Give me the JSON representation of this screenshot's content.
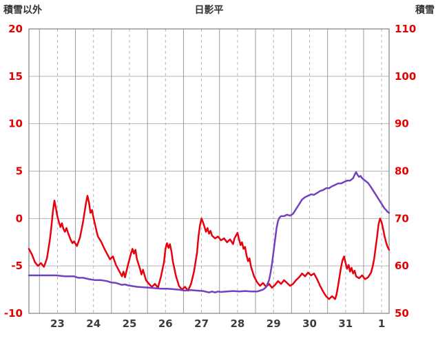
{
  "chart_data": {
    "type": "line",
    "title": "日影平",
    "style": {
      "tick_color": "#e50000",
      "date_label_color": "#3c3c3c",
      "grid_color": "#b4b4b4",
      "day_grid_color": "#9a9a9a",
      "border_color": "#7f7f7f",
      "background": "#ffffff"
    },
    "x": {
      "window_hours": 240,
      "day_labels": [
        "23",
        "24",
        "25",
        "26",
        "27",
        "28",
        "29",
        "30",
        "31",
        "1"
      ],
      "label_hours": [
        19,
        43,
        67,
        91,
        115,
        139,
        163,
        187,
        211,
        235
      ],
      "midnight_hours": [
        7,
        31,
        55,
        79,
        103,
        127,
        151,
        175,
        199,
        223
      ]
    },
    "left_axis": {
      "label": "積雪以外",
      "min": -10,
      "max": 20,
      "ticks": [
        20,
        15,
        10,
        5,
        0,
        -5,
        -10
      ]
    },
    "right_axis": {
      "label": "積雪",
      "min": 50,
      "max": 110,
      "ticks": [
        110,
        100,
        90,
        80,
        70,
        60,
        50
      ]
    },
    "series": [
      {
        "name": "積雪以外",
        "id": "other-than-snow-line",
        "axis": "left",
        "color": "#e8000d",
        "points": [
          [
            0,
            -3.2
          ],
          [
            2,
            -3.8
          ],
          [
            4,
            -4.6
          ],
          [
            6,
            -5.0
          ],
          [
            8,
            -4.7
          ],
          [
            10,
            -5.1
          ],
          [
            12,
            -4.2
          ],
          [
            14,
            -2.2
          ],
          [
            15,
            -0.8
          ],
          [
            16,
            0.8
          ],
          [
            17,
            1.9
          ],
          [
            18,
            1.1
          ],
          [
            19,
            0.2
          ],
          [
            20,
            -0.4
          ],
          [
            21,
            -0.9
          ],
          [
            22,
            -0.5
          ],
          [
            23,
            -1.1
          ],
          [
            24,
            -1.4
          ],
          [
            25,
            -1.0
          ],
          [
            26,
            -1.5
          ],
          [
            27,
            -1.9
          ],
          [
            28,
            -2.3
          ],
          [
            29,
            -2.6
          ],
          [
            30,
            -2.4
          ],
          [
            32,
            -2.9
          ],
          [
            34,
            -2.0
          ],
          [
            36,
            -0.4
          ],
          [
            38,
            1.6
          ],
          [
            39,
            2.4
          ],
          [
            40,
            1.7
          ],
          [
            41,
            0.6
          ],
          [
            42,
            0.9
          ],
          [
            43,
            0.1
          ],
          [
            44,
            -0.6
          ],
          [
            45,
            -1.3
          ],
          [
            46,
            -1.9
          ],
          [
            48,
            -2.4
          ],
          [
            50,
            -3.1
          ],
          [
            52,
            -3.7
          ],
          [
            54,
            -4.3
          ],
          [
            56,
            -4.0
          ],
          [
            58,
            -4.9
          ],
          [
            60,
            -5.5
          ],
          [
            62,
            -6.1
          ],
          [
            63,
            -5.6
          ],
          [
            64,
            -6.2
          ],
          [
            66,
            -4.9
          ],
          [
            68,
            -3.7
          ],
          [
            69,
            -3.2
          ],
          [
            70,
            -3.7
          ],
          [
            71,
            -3.3
          ],
          [
            72,
            -4.3
          ],
          [
            74,
            -5.3
          ],
          [
            75,
            -5.9
          ],
          [
            76,
            -5.4
          ],
          [
            78,
            -6.5
          ],
          [
            80,
            -6.9
          ],
          [
            82,
            -7.2
          ],
          [
            84,
            -6.9
          ],
          [
            86,
            -7.3
          ],
          [
            88,
            -6.1
          ],
          [
            90,
            -4.6
          ],
          [
            91,
            -3.2
          ],
          [
            92,
            -2.6
          ],
          [
            93,
            -3.1
          ],
          [
            94,
            -2.7
          ],
          [
            95,
            -3.5
          ],
          [
            96,
            -4.6
          ],
          [
            98,
            -6.1
          ],
          [
            100,
            -7.1
          ],
          [
            102,
            -7.5
          ],
          [
            104,
            -7.2
          ],
          [
            106,
            -7.6
          ],
          [
            108,
            -6.9
          ],
          [
            110,
            -5.6
          ],
          [
            111,
            -4.6
          ],
          [
            112,
            -3.6
          ],
          [
            113,
            -1.9
          ],
          [
            114,
            -0.7
          ],
          [
            115,
            0.0
          ],
          [
            116,
            -0.4
          ],
          [
            117,
            -0.9
          ],
          [
            118,
            -1.4
          ],
          [
            119,
            -1.0
          ],
          [
            120,
            -1.6
          ],
          [
            121,
            -1.3
          ],
          [
            122,
            -1.8
          ],
          [
            124,
            -2.1
          ],
          [
            126,
            -1.9
          ],
          [
            128,
            -2.3
          ],
          [
            130,
            -2.1
          ],
          [
            132,
            -2.5
          ],
          [
            134,
            -2.2
          ],
          [
            136,
            -2.7
          ],
          [
            137,
            -2.1
          ],
          [
            139,
            -1.5
          ],
          [
            140,
            -2.2
          ],
          [
            141,
            -2.8
          ],
          [
            142,
            -2.5
          ],
          [
            143,
            -3.2
          ],
          [
            144,
            -3.0
          ],
          [
            145,
            -3.9
          ],
          [
            146,
            -4.5
          ],
          [
            147,
            -4.2
          ],
          [
            148,
            -5.1
          ],
          [
            150,
            -6.1
          ],
          [
            152,
            -6.7
          ],
          [
            154,
            -7.1
          ],
          [
            156,
            -6.8
          ],
          [
            158,
            -7.2
          ],
          [
            160,
            -6.9
          ],
          [
            162,
            -7.3
          ],
          [
            164,
            -7.0
          ],
          [
            166,
            -6.6
          ],
          [
            168,
            -6.9
          ],
          [
            170,
            -6.5
          ],
          [
            172,
            -6.8
          ],
          [
            174,
            -7.1
          ],
          [
            176,
            -6.9
          ],
          [
            178,
            -6.5
          ],
          [
            180,
            -6.2
          ],
          [
            182,
            -5.8
          ],
          [
            184,
            -6.1
          ],
          [
            186,
            -5.7
          ],
          [
            188,
            -6.0
          ],
          [
            190,
            -5.8
          ],
          [
            192,
            -6.4
          ],
          [
            194,
            -7.1
          ],
          [
            196,
            -7.7
          ],
          [
            198,
            -8.2
          ],
          [
            200,
            -8.5
          ],
          [
            202,
            -8.2
          ],
          [
            204,
            -8.5
          ],
          [
            205,
            -8.0
          ],
          [
            206,
            -7.1
          ],
          [
            207,
            -6.1
          ],
          [
            208,
            -5.1
          ],
          [
            209,
            -4.4
          ],
          [
            210,
            -4.0
          ],
          [
            211,
            -4.7
          ],
          [
            212,
            -5.3
          ],
          [
            213,
            -4.9
          ],
          [
            214,
            -5.6
          ],
          [
            215,
            -5.2
          ],
          [
            216,
            -5.8
          ],
          [
            217,
            -5.5
          ],
          [
            218,
            -6.1
          ],
          [
            220,
            -6.3
          ],
          [
            222,
            -6.0
          ],
          [
            224,
            -6.4
          ],
          [
            226,
            -6.2
          ],
          [
            228,
            -5.7
          ],
          [
            229,
            -5.1
          ],
          [
            230,
            -4.3
          ],
          [
            231,
            -3.1
          ],
          [
            232,
            -1.9
          ],
          [
            233,
            -0.6
          ],
          [
            234,
            0.0
          ],
          [
            235,
            -0.4
          ],
          [
            236,
            -1.1
          ],
          [
            237,
            -1.9
          ],
          [
            238,
            -2.5
          ],
          [
            239,
            -3.0
          ],
          [
            240,
            -3.3
          ]
        ]
      },
      {
        "name": "積雪",
        "id": "snow-depth-line",
        "axis": "right",
        "color": "#7340bf",
        "points": [
          [
            0,
            58
          ],
          [
            6,
            58
          ],
          [
            12,
            58
          ],
          [
            18,
            58
          ],
          [
            24,
            57.8
          ],
          [
            30,
            57.8
          ],
          [
            33,
            57.5
          ],
          [
            36,
            57.5
          ],
          [
            40,
            57.2
          ],
          [
            44,
            57
          ],
          [
            48,
            57
          ],
          [
            52,
            56.8
          ],
          [
            55,
            56.5
          ],
          [
            58,
            56.4
          ],
          [
            60,
            56.2
          ],
          [
            62,
            56
          ],
          [
            64,
            56.1
          ],
          [
            66,
            55.9
          ],
          [
            68,
            55.8
          ],
          [
            72,
            55.6
          ],
          [
            76,
            55.5
          ],
          [
            80,
            55.4
          ],
          [
            84,
            55.3
          ],
          [
            88,
            55.2
          ],
          [
            92,
            55.2
          ],
          [
            96,
            55.1
          ],
          [
            100,
            55
          ],
          [
            104,
            54.8
          ],
          [
            108,
            54.9
          ],
          [
            112,
            54.8
          ],
          [
            116,
            54.7
          ],
          [
            120,
            54.4
          ],
          [
            122,
            54.6
          ],
          [
            124,
            54.4
          ],
          [
            126,
            54.6
          ],
          [
            128,
            54.5
          ],
          [
            132,
            54.6
          ],
          [
            136,
            54.7
          ],
          [
            140,
            54.6
          ],
          [
            144,
            54.7
          ],
          [
            148,
            54.6
          ],
          [
            152,
            54.6
          ],
          [
            154,
            54.8
          ],
          [
            156,
            55
          ],
          [
            158,
            55.5
          ],
          [
            160,
            57
          ],
          [
            161,
            58.5
          ],
          [
            162,
            60.5
          ],
          [
            163,
            63
          ],
          [
            164,
            65.5
          ],
          [
            165,
            68
          ],
          [
            166,
            69.5
          ],
          [
            167,
            70.2
          ],
          [
            168,
            70.5
          ],
          [
            170,
            70.5
          ],
          [
            172,
            70.8
          ],
          [
            174,
            70.6
          ],
          [
            176,
            71
          ],
          [
            178,
            72
          ],
          [
            180,
            73
          ],
          [
            182,
            74
          ],
          [
            184,
            74.5
          ],
          [
            186,
            74.8
          ],
          [
            188,
            75.1
          ],
          [
            190,
            75
          ],
          [
            192,
            75.4
          ],
          [
            194,
            75.8
          ],
          [
            196,
            76
          ],
          [
            198,
            76.4
          ],
          [
            200,
            76.4
          ],
          [
            202,
            76.8
          ],
          [
            204,
            77.1
          ],
          [
            206,
            77.4
          ],
          [
            208,
            77.4
          ],
          [
            210,
            77.7
          ],
          [
            212,
            78
          ],
          [
            214,
            78
          ],
          [
            216,
            78.5
          ],
          [
            217,
            79.2
          ],
          [
            218,
            79.8
          ],
          [
            219,
            79.2
          ],
          [
            220,
            78.8
          ],
          [
            221,
            79
          ],
          [
            222,
            78.5
          ],
          [
            224,
            78
          ],
          [
            226,
            77.5
          ],
          [
            228,
            76.6
          ],
          [
            230,
            75.6
          ],
          [
            232,
            74.6
          ],
          [
            234,
            73.6
          ],
          [
            236,
            72.6
          ],
          [
            237,
            72.1
          ],
          [
            238,
            71.8
          ],
          [
            239,
            71.4
          ],
          [
            240,
            71.2
          ]
        ]
      }
    ]
  }
}
